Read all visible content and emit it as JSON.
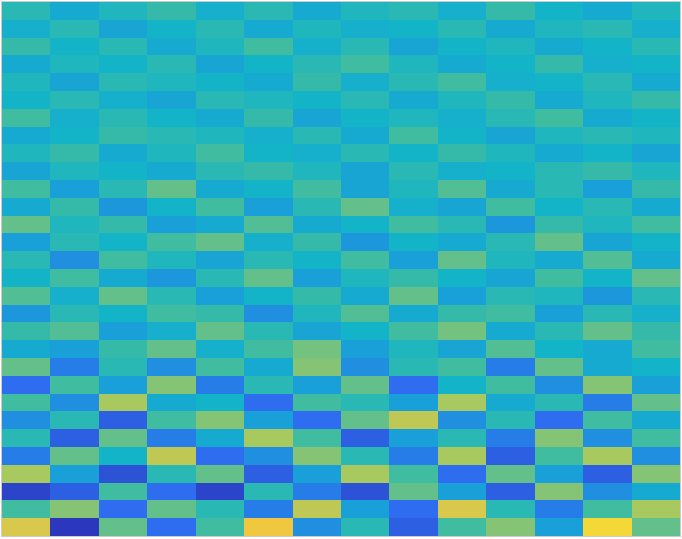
{
  "chart_data": {
    "type": "heatmap",
    "zlim": [
      -1,
      1
    ],
    "tick_labels": false,
    "cells": [
      [
        0.1,
        -0.1,
        0.05,
        0.15,
        -0.05,
        0.1,
        -0.1,
        0.05,
        0.1,
        -0.05,
        0.15,
        0,
        -0.1,
        0.05
      ],
      [
        -0.05,
        0.1,
        -0.15,
        0,
        0.1,
        -0.1,
        0.05,
        -0.05,
        0,
        0.1,
        -0.1,
        0.05,
        0.1,
        -0.05
      ],
      [
        0.15,
        0,
        0.1,
        -0.1,
        0.05,
        0.2,
        -0.05,
        0.1,
        -0.15,
        0,
        0.05,
        -0.1,
        0,
        0.1
      ],
      [
        -0.1,
        0.05,
        0,
        0.1,
        -0.15,
        0,
        0.1,
        0.2,
        0.05,
        -0.1,
        0,
        0.15,
        -0.05,
        0
      ],
      [
        0.05,
        -0.15,
        0.1,
        0.05,
        0,
        -0.1,
        0.15,
        -0.05,
        0.1,
        0.2,
        -0.05,
        0,
        0.1,
        -0.1
      ],
      [
        0,
        0.1,
        -0.05,
        -0.15,
        0.1,
        0.05,
        0,
        0.1,
        -0.1,
        0.05,
        0.15,
        -0.1,
        0.05,
        0.15
      ],
      [
        0.2,
        -0.05,
        0.1,
        0,
        -0.1,
        0.15,
        -0.15,
        0,
        0.05,
        -0.05,
        0.1,
        0.2,
        -0.1,
        0
      ],
      [
        -0.1,
        0,
        0.15,
        0.1,
        0.05,
        -0.05,
        0.1,
        -0.1,
        0.2,
        0,
        -0.15,
        0.05,
        0.1,
        0.05
      ],
      [
        0.05,
        0.15,
        -0.1,
        0.05,
        0.2,
        0,
        -0.05,
        0.1,
        0,
        0.15,
        0.05,
        -0.1,
        0,
        -0.15
      ],
      [
        -0.15,
        0.05,
        0,
        -0.1,
        0.1,
        0.15,
        0.05,
        -0.15,
        0.1,
        -0.05,
        0,
        0.1,
        0.15,
        0.05
      ],
      [
        0.2,
        -0.2,
        0.1,
        0.3,
        -0.1,
        0,
        0.2,
        -0.15,
        0.05,
        0.25,
        -0.1,
        0.1,
        -0.2,
        0.15
      ],
      [
        -0.1,
        0.15,
        -0.25,
        0,
        0.2,
        -0.2,
        0.1,
        0.3,
        -0.05,
        -0.15,
        0.2,
        0,
        0.1,
        -0.1
      ],
      [
        0.3,
        0.05,
        0.15,
        -0.2,
        -0.1,
        0.25,
        -0.1,
        0,
        0.2,
        0.1,
        -0.25,
        0.15,
        0.05,
        0.2
      ],
      [
        -0.2,
        0.1,
        0,
        0.2,
        0.3,
        -0.05,
        0.15,
        -0.25,
        0,
        -0.1,
        0.1,
        0.3,
        -0.15,
        0
      ],
      [
        0.1,
        -0.3,
        0.2,
        0.05,
        -0.15,
        0.1,
        0,
        0.2,
        -0.2,
        0.3,
        0.05,
        -0.1,
        0.25,
        -0.1
      ],
      [
        0,
        0.2,
        -0.1,
        -0.25,
        0.1,
        0.3,
        -0.2,
        0.05,
        0.15,
        0,
        -0.15,
        0.2,
        0,
        0.3
      ],
      [
        0.25,
        -0.05,
        0.3,
        0.1,
        -0.2,
        0,
        0.15,
        -0.1,
        0.3,
        -0.2,
        0.1,
        0.05,
        -0.25,
        0.1
      ],
      [
        -0.25,
        0.1,
        0,
        0.2,
        0.15,
        -0.3,
        0.05,
        0.25,
        -0.1,
        0.15,
        0.2,
        -0.2,
        0.1,
        -0.05
      ],
      [
        0.15,
        0.25,
        -0.2,
        -0.05,
        0.3,
        0.1,
        -0.15,
        0,
        0.2,
        0.35,
        -0.1,
        0.1,
        0.3,
        0.15
      ],
      [
        -0.1,
        -0.2,
        0.15,
        0.3,
        -0.05,
        0.2,
        0.35,
        -0.2,
        0.05,
        -0.15,
        0.25,
        0,
        -0.1,
        0.2
      ],
      [
        0.3,
        -0.4,
        0.1,
        -0.3,
        0.2,
        -0.1,
        0.4,
        -0.3,
        0.1,
        0.2,
        -0.4,
        0.3,
        -0.1,
        0
      ],
      [
        -0.5,
        0.2,
        -0.2,
        0.4,
        -0.4,
        0.1,
        -0.2,
        0.3,
        -0.5,
        0,
        0.2,
        -0.3,
        0.4,
        -0.2
      ],
      [
        0.2,
        -0.3,
        0.5,
        -0.1,
        0,
        -0.5,
        0.2,
        0.1,
        -0.2,
        0.5,
        -0.1,
        0.1,
        -0.4,
        0.3
      ],
      [
        -0.3,
        0.1,
        -0.6,
        0.2,
        0.4,
        -0.2,
        -0.5,
        0.3,
        0.6,
        -0.3,
        0.1,
        -0.5,
        0.2,
        -0.1
      ],
      [
        0.1,
        -0.6,
        0.3,
        -0.4,
        -0.1,
        0.5,
        0.2,
        -0.6,
        -0.2,
        0.1,
        -0.4,
        0.4,
        -0.3,
        0.2
      ],
      [
        -0.4,
        0.3,
        0,
        0.6,
        -0.5,
        -0.3,
        0.4,
        0.1,
        -0.4,
        0.5,
        -0.6,
        0.2,
        0.5,
        -0.3
      ],
      [
        0.5,
        -0.2,
        -0.7,
        0.1,
        0.3,
        -0.6,
        -0.2,
        0.5,
        0.2,
        -0.5,
        0.3,
        -0.2,
        -0.6,
        0.4
      ],
      [
        -0.8,
        -0.6,
        0.2,
        -0.5,
        -0.8,
        0.1,
        -0.4,
        -0.7,
        0.3,
        -0.2,
        -0.6,
        0.4,
        -0.3,
        -0.1
      ],
      [
        0.2,
        0.4,
        -0.5,
        0.3,
        0.1,
        -0.4,
        0.6,
        -0.2,
        -0.5,
        0.7,
        0.1,
        -0.4,
        0.2,
        0.5
      ],
      [
        0.7,
        -0.9,
        0.3,
        -0.5,
        0.2,
        0.8,
        -0.3,
        0.1,
        -0.6,
        0.2,
        0.4,
        -0.2,
        0.9,
        0.3
      ]
    ]
  }
}
